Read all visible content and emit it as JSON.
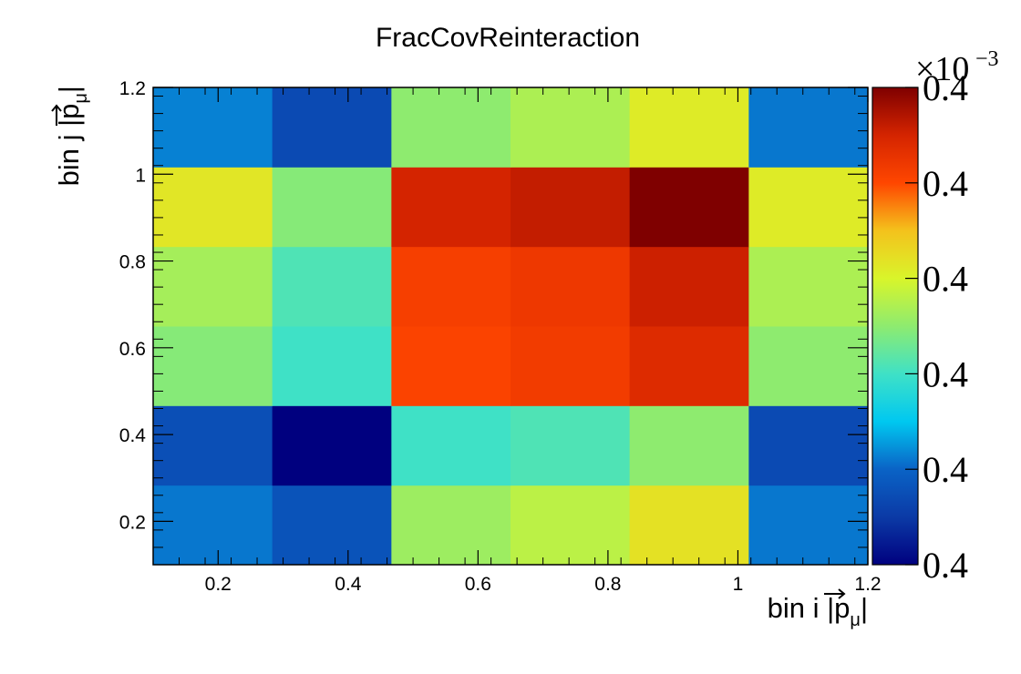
{
  "chart_data": {
    "type": "heatmap",
    "title": "FracCovReinteraction",
    "xlabel": "bin i |p⃗μ|",
    "ylabel": "bin j |p⃗μ|",
    "xlabel_parts": {
      "prefix": "bin i |",
      "symbol": "p",
      "sub": "μ",
      "suffix": "|"
    },
    "ylabel_parts": {
      "prefix": "bin j |",
      "symbol": "p",
      "sub": "μ",
      "suffix": "|"
    },
    "x_edges": [
      0.1,
      0.2833,
      0.4667,
      0.65,
      0.8333,
      1.0167,
      1.2
    ],
    "y_edges": [
      0.1,
      0.2833,
      0.4667,
      0.65,
      0.8333,
      1.0167,
      1.2
    ],
    "xlim": [
      0.1,
      1.2
    ],
    "ylim": [
      0.1,
      1.2
    ],
    "x_ticks": [
      0.2,
      0.4,
      0.6,
      0.8,
      1.0,
      1.2
    ],
    "x_tick_labels": [
      "0.2",
      "0.4",
      "0.6",
      "0.8",
      "1",
      "1.2"
    ],
    "y_ticks": [
      0.2,
      0.4,
      0.6,
      0.8,
      1.0,
      1.2
    ],
    "y_tick_labels": [
      "0.2",
      "0.4",
      "0.6",
      "0.8",
      "1",
      "1.2"
    ],
    "z_note": "relative colour level 0..1 within palette range",
    "z_rows_bottom_to_top": [
      [
        0.22,
        0.16,
        0.52,
        0.56,
        0.64,
        0.22
      ],
      [
        0.15,
        0.0,
        0.4,
        0.42,
        0.5,
        0.14
      ],
      [
        0.49,
        0.4,
        0.81,
        0.83,
        0.88,
        0.5
      ],
      [
        0.53,
        0.42,
        0.82,
        0.84,
        0.91,
        0.54
      ],
      [
        0.63,
        0.49,
        0.9,
        0.92,
        1.0,
        0.62
      ],
      [
        0.23,
        0.14,
        0.5,
        0.54,
        0.62,
        0.22
      ]
    ],
    "colorbar": {
      "exponent_base": "×10",
      "exponent_power": "−3",
      "labels": [
        "0.4",
        "0.4",
        "0.4",
        "0.4",
        "0.4",
        "0.4"
      ],
      "label_levels": [
        0.0,
        0.2,
        0.4,
        0.6,
        0.8,
        1.0
      ],
      "palette": [
        "#00007f",
        "#0b3aa6",
        "#0a63c6",
        "#00c8f0",
        "#3fe1c6",
        "#8eeb6f",
        "#d9f52a",
        "#f4c21c",
        "#ff4600",
        "#d42400",
        "#7f0000"
      ]
    },
    "grid": false,
    "legend": "colorbar-right"
  }
}
